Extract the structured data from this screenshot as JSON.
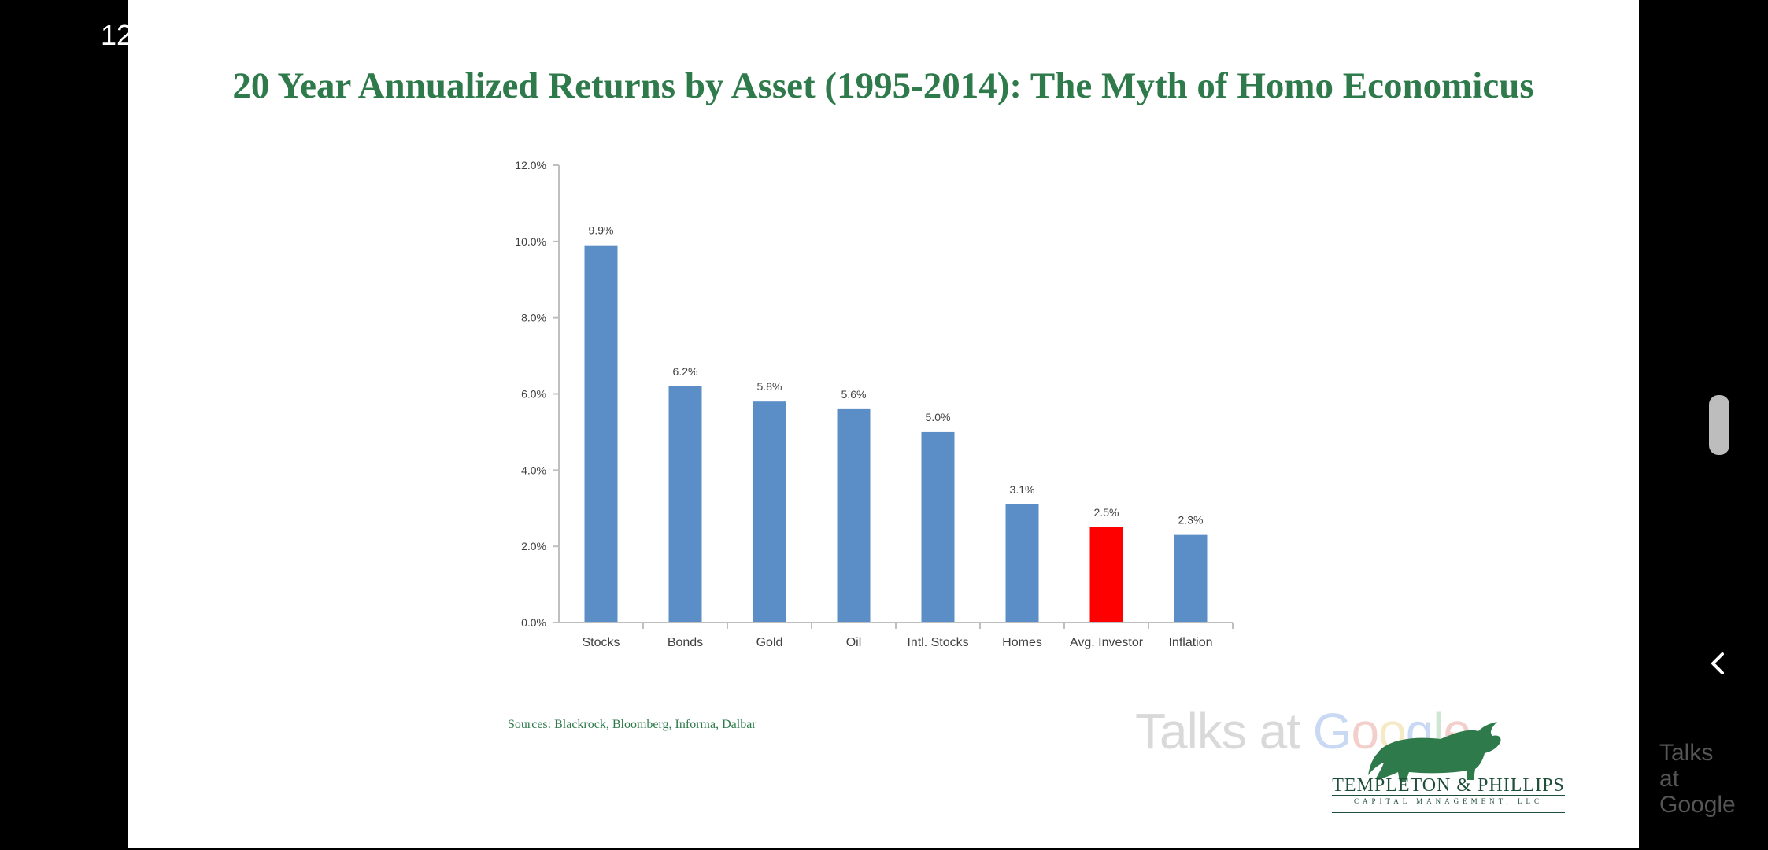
{
  "status_bar": {
    "time": "12"
  },
  "slide": {
    "title": "20 Year Annualized Returns by Asset (1995-2014): The Myth of Homo Economicus",
    "source": "Sources: Blackrock, Bloomberg, Informa, Dalbar"
  },
  "watermark": {
    "prefix": "Talks at ",
    "g1": "G",
    "o1": "o",
    "o2": "o",
    "g2": "g",
    "l": "l",
    "e": "e"
  },
  "logo": {
    "name": "TEMPLETON & PHILLIPS",
    "tagline": "CAPITAL MANAGEMENT, LLC"
  },
  "side_watermark": {
    "line1": "Talks",
    "line2": "at",
    "line3": "Google"
  },
  "colors": {
    "title_green": "#2e7a4b",
    "bar_blue": "#5b8ec6",
    "bar_highlight": "#ff0000",
    "background": "#000000"
  },
  "icons": {
    "back": "chevron-left-icon",
    "logo": "bull-icon"
  },
  "chart_data": {
    "type": "bar",
    "categories": [
      "Stocks",
      "Bonds",
      "Gold",
      "Oil",
      "Intl. Stocks",
      "Homes",
      "Avg. Investor",
      "Inflation"
    ],
    "values": [
      9.9,
      6.2,
      5.8,
      5.6,
      5.0,
      3.1,
      2.5,
      2.3
    ],
    "data_labels": [
      "9.9%",
      "6.2%",
      "5.8%",
      "5.6%",
      "5.0%",
      "3.1%",
      "2.5%",
      "2.3%"
    ],
    "highlight_index": 6,
    "y_ticks": [
      "0.0%",
      "2.0%",
      "4.0%",
      "6.0%",
      "8.0%",
      "10.0%",
      "12.0%"
    ],
    "ylim": [
      0,
      12
    ],
    "grid": false,
    "legend": "none"
  }
}
